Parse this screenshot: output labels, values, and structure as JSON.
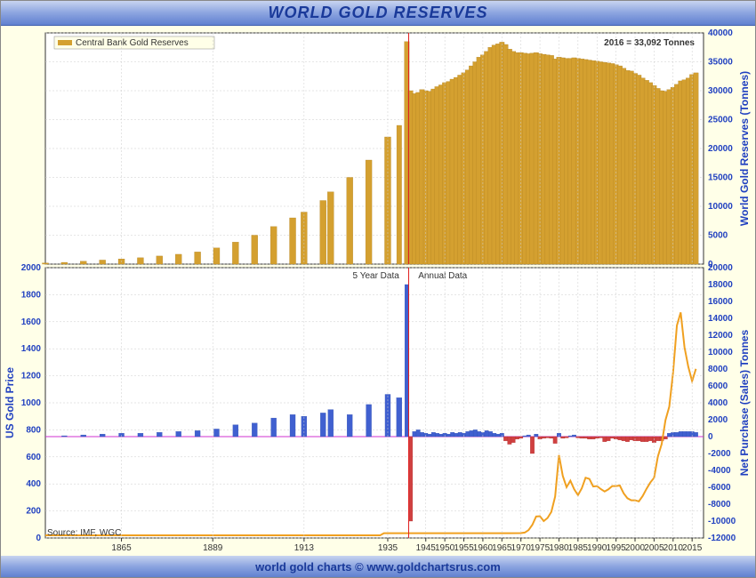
{
  "title": "WORLD GOLD RESERVES",
  "footer": "world gold charts © www.goldchartsrus.com",
  "source": "Source: IMF, WGC",
  "annotation_top": "2016 = 33,092 Tonnes",
  "legend_top": "Central Bank Gold Reserves",
  "label_5yr": "5 Year Data",
  "label_annual": "Annual Data",
  "chart": {
    "background": "#ffffe8",
    "title_color": "#1a3a9a",
    "gradient_top": "#c8d4f0",
    "gradient_mid": "#8ca4e0",
    "gradient_bot": "#6080d0",
    "bar_gold": "#d4a030",
    "bar_blue": "#4060d0",
    "bar_red": "#d04040",
    "line_gold": "#f0a020",
    "zero_line": "#d030d0",
    "marker_red": "#e02020",
    "axis_blue": "#2040c0",
    "grid": "#cccccc"
  },
  "top_panel": {
    "y_title": "World Gold Reserves (Tonnes)",
    "ymin": 0,
    "ymax": 40000,
    "ystep": 5000,
    "bars": [
      {
        "year": 1845,
        "v": 200
      },
      {
        "year": 1850,
        "v": 300
      },
      {
        "year": 1855,
        "v": 500
      },
      {
        "year": 1860,
        "v": 700
      },
      {
        "year": 1865,
        "v": 900
      },
      {
        "year": 1870,
        "v": 1100
      },
      {
        "year": 1875,
        "v": 1400
      },
      {
        "year": 1880,
        "v": 1700
      },
      {
        "year": 1885,
        "v": 2100
      },
      {
        "year": 1890,
        "v": 2800
      },
      {
        "year": 1895,
        "v": 3800
      },
      {
        "year": 1900,
        "v": 5000
      },
      {
        "year": 1905,
        "v": 6500
      },
      {
        "year": 1910,
        "v": 8000
      },
      {
        "year": 1913,
        "v": 9000
      },
      {
        "year": 1918,
        "v": 11000
      },
      {
        "year": 1920,
        "v": 12500
      },
      {
        "year": 1925,
        "v": 15000
      },
      {
        "year": 1930,
        "v": 18000
      },
      {
        "year": 1935,
        "v": 22000
      },
      {
        "year": 1938,
        "v": 24000
      },
      {
        "year": 1940,
        "v": 38500
      },
      {
        "year": 1941,
        "v": 30000
      },
      {
        "year": 1942,
        "v": 29500
      },
      {
        "year": 1943,
        "v": 29700
      },
      {
        "year": 1944,
        "v": 30200
      },
      {
        "year": 1945,
        "v": 30000
      },
      {
        "year": 1946,
        "v": 29900
      },
      {
        "year": 1947,
        "v": 30300
      },
      {
        "year": 1948,
        "v": 30700
      },
      {
        "year": 1949,
        "v": 31000
      },
      {
        "year": 1950,
        "v": 31400
      },
      {
        "year": 1951,
        "v": 31600
      },
      {
        "year": 1952,
        "v": 32000
      },
      {
        "year": 1953,
        "v": 32300
      },
      {
        "year": 1954,
        "v": 32700
      },
      {
        "year": 1955,
        "v": 33100
      },
      {
        "year": 1956,
        "v": 33600
      },
      {
        "year": 1957,
        "v": 34300
      },
      {
        "year": 1958,
        "v": 35000
      },
      {
        "year": 1959,
        "v": 35800
      },
      {
        "year": 1960,
        "v": 36200
      },
      {
        "year": 1961,
        "v": 36800
      },
      {
        "year": 1962,
        "v": 37500
      },
      {
        "year": 1963,
        "v": 37900
      },
      {
        "year": 1964,
        "v": 38100
      },
      {
        "year": 1965,
        "v": 38400
      },
      {
        "year": 1966,
        "v": 38000
      },
      {
        "year": 1967,
        "v": 37200
      },
      {
        "year": 1968,
        "v": 36800
      },
      {
        "year": 1969,
        "v": 36600
      },
      {
        "year": 1970,
        "v": 36600
      },
      {
        "year": 1971,
        "v": 36500
      },
      {
        "year": 1972,
        "v": 36400
      },
      {
        "year": 1973,
        "v": 36500
      },
      {
        "year": 1974,
        "v": 36600
      },
      {
        "year": 1975,
        "v": 36400
      },
      {
        "year": 1976,
        "v": 36300
      },
      {
        "year": 1977,
        "v": 36200
      },
      {
        "year": 1978,
        "v": 36100
      },
      {
        "year": 1979,
        "v": 35500
      },
      {
        "year": 1980,
        "v": 35800
      },
      {
        "year": 1981,
        "v": 35700
      },
      {
        "year": 1982,
        "v": 35600
      },
      {
        "year": 1983,
        "v": 35600
      },
      {
        "year": 1984,
        "v": 35700
      },
      {
        "year": 1985,
        "v": 35600
      },
      {
        "year": 1986,
        "v": 35500
      },
      {
        "year": 1987,
        "v": 35400
      },
      {
        "year": 1988,
        "v": 35300
      },
      {
        "year": 1989,
        "v": 35200
      },
      {
        "year": 1990,
        "v": 35100
      },
      {
        "year": 1991,
        "v": 35000
      },
      {
        "year": 1992,
        "v": 34900
      },
      {
        "year": 1993,
        "v": 34800
      },
      {
        "year": 1994,
        "v": 34700
      },
      {
        "year": 1995,
        "v": 34500
      },
      {
        "year": 1996,
        "v": 34300
      },
      {
        "year": 1997,
        "v": 33900
      },
      {
        "year": 1998,
        "v": 33500
      },
      {
        "year": 1999,
        "v": 33400
      },
      {
        "year": 2000,
        "v": 33000
      },
      {
        "year": 2001,
        "v": 32700
      },
      {
        "year": 2002,
        "v": 32200
      },
      {
        "year": 2003,
        "v": 31800
      },
      {
        "year": 2004,
        "v": 31400
      },
      {
        "year": 2005,
        "v": 30900
      },
      {
        "year": 2006,
        "v": 30400
      },
      {
        "year": 2007,
        "v": 30000
      },
      {
        "year": 2008,
        "v": 29900
      },
      {
        "year": 2009,
        "v": 30200
      },
      {
        "year": 2010,
        "v": 30600
      },
      {
        "year": 2011,
        "v": 31100
      },
      {
        "year": 2012,
        "v": 31700
      },
      {
        "year": 2013,
        "v": 31900
      },
      {
        "year": 2014,
        "v": 32200
      },
      {
        "year": 2015,
        "v": 32800
      },
      {
        "year": 2016,
        "v": 33092
      }
    ]
  },
  "bottom_panel": {
    "y1_title": "US Gold Price",
    "y2_title": "Net Purchase (Sales) Tonnes",
    "y1min": 0,
    "y1max": 2000,
    "y1step": 200,
    "y2min": -12000,
    "y2max": 20000,
    "y2step": 2000,
    "purchase_bars": [
      {
        "year": 1850,
        "v": 100
      },
      {
        "year": 1855,
        "v": 200
      },
      {
        "year": 1860,
        "v": 300
      },
      {
        "year": 1865,
        "v": 400
      },
      {
        "year": 1870,
        "v": 400
      },
      {
        "year": 1875,
        "v": 500
      },
      {
        "year": 1880,
        "v": 600
      },
      {
        "year": 1885,
        "v": 700
      },
      {
        "year": 1890,
        "v": 900
      },
      {
        "year": 1895,
        "v": 1400
      },
      {
        "year": 1900,
        "v": 1600
      },
      {
        "year": 1905,
        "v": 2200
      },
      {
        "year": 1910,
        "v": 2600
      },
      {
        "year": 1913,
        "v": 2400
      },
      {
        "year": 1918,
        "v": 2800
      },
      {
        "year": 1920,
        "v": 3200
      },
      {
        "year": 1925,
        "v": 2600
      },
      {
        "year": 1930,
        "v": 3800
      },
      {
        "year": 1935,
        "v": 5000
      },
      {
        "year": 1938,
        "v": 4600
      },
      {
        "year": 1940,
        "v": 18000
      },
      {
        "year": 1941,
        "v": -10000
      },
      {
        "year": 1942,
        "v": 600
      },
      {
        "year": 1943,
        "v": 800
      },
      {
        "year": 1944,
        "v": 500
      },
      {
        "year": 1945,
        "v": 400
      },
      {
        "year": 1946,
        "v": 300
      },
      {
        "year": 1947,
        "v": 500
      },
      {
        "year": 1948,
        "v": 400
      },
      {
        "year": 1949,
        "v": 300
      },
      {
        "year": 1950,
        "v": 400
      },
      {
        "year": 1951,
        "v": 300
      },
      {
        "year": 1952,
        "v": 500
      },
      {
        "year": 1953,
        "v": 400
      },
      {
        "year": 1954,
        "v": 500
      },
      {
        "year": 1955,
        "v": 400
      },
      {
        "year": 1956,
        "v": 600
      },
      {
        "year": 1957,
        "v": 700
      },
      {
        "year": 1958,
        "v": 800
      },
      {
        "year": 1959,
        "v": 600
      },
      {
        "year": 1960,
        "v": 500
      },
      {
        "year": 1961,
        "v": 700
      },
      {
        "year": 1962,
        "v": 600
      },
      {
        "year": 1963,
        "v": 400
      },
      {
        "year": 1964,
        "v": 300
      },
      {
        "year": 1965,
        "v": 400
      },
      {
        "year": 1966,
        "v": -500
      },
      {
        "year": 1967,
        "v": -900
      },
      {
        "year": 1968,
        "v": -700
      },
      {
        "year": 1969,
        "v": -300
      },
      {
        "year": 1970,
        "v": -200
      },
      {
        "year": 1971,
        "v": 100
      },
      {
        "year": 1972,
        "v": 200
      },
      {
        "year": 1973,
        "v": -2000
      },
      {
        "year": 1974,
        "v": 300
      },
      {
        "year": 1975,
        "v": -300
      },
      {
        "year": 1976,
        "v": -200
      },
      {
        "year": 1977,
        "v": -150
      },
      {
        "year": 1978,
        "v": -200
      },
      {
        "year": 1979,
        "v": -800
      },
      {
        "year": 1980,
        "v": 400
      },
      {
        "year": 1981,
        "v": -200
      },
      {
        "year": 1982,
        "v": -150
      },
      {
        "year": 1983,
        "v": 100
      },
      {
        "year": 1984,
        "v": 200
      },
      {
        "year": 1985,
        "v": -150
      },
      {
        "year": 1986,
        "v": -200
      },
      {
        "year": 1987,
        "v": -200
      },
      {
        "year": 1988,
        "v": -300
      },
      {
        "year": 1989,
        "v": -300
      },
      {
        "year": 1990,
        "v": -200
      },
      {
        "year": 1991,
        "v": -150
      },
      {
        "year": 1992,
        "v": -600
      },
      {
        "year": 1993,
        "v": -500
      },
      {
        "year": 1994,
        "v": -200
      },
      {
        "year": 1995,
        "v": -300
      },
      {
        "year": 1996,
        "v": -400
      },
      {
        "year": 1997,
        "v": -500
      },
      {
        "year": 1998,
        "v": -600
      },
      {
        "year": 1999,
        "v": -400
      },
      {
        "year": 2000,
        "v": -500
      },
      {
        "year": 2001,
        "v": -500
      },
      {
        "year": 2002,
        "v": -600
      },
      {
        "year": 2003,
        "v": -600
      },
      {
        "year": 2004,
        "v": -500
      },
      {
        "year": 2005,
        "v": -700
      },
      {
        "year": 2006,
        "v": -500
      },
      {
        "year": 2007,
        "v": -500
      },
      {
        "year": 2008,
        "v": -300
      },
      {
        "year": 2009,
        "v": 400
      },
      {
        "year": 2010,
        "v": 500
      },
      {
        "year": 2011,
        "v": 500
      },
      {
        "year": 2012,
        "v": 600
      },
      {
        "year": 2013,
        "v": 600
      },
      {
        "year": 2014,
        "v": 600
      },
      {
        "year": 2015,
        "v": 600
      },
      {
        "year": 2016,
        "v": 500
      }
    ],
    "gold_price": [
      {
        "year": 1845,
        "p": 20
      },
      {
        "year": 1900,
        "p": 20
      },
      {
        "year": 1933,
        "p": 20
      },
      {
        "year": 1934,
        "p": 35
      },
      {
        "year": 1967,
        "p": 35
      },
      {
        "year": 1970,
        "p": 36
      },
      {
        "year": 1971,
        "p": 40
      },
      {
        "year": 1972,
        "p": 58
      },
      {
        "year": 1973,
        "p": 97
      },
      {
        "year": 1974,
        "p": 159
      },
      {
        "year": 1975,
        "p": 161
      },
      {
        "year": 1976,
        "p": 125
      },
      {
        "year": 1977,
        "p": 148
      },
      {
        "year": 1978,
        "p": 193
      },
      {
        "year": 1979,
        "p": 307
      },
      {
        "year": 1980,
        "p": 613
      },
      {
        "year": 1981,
        "p": 460
      },
      {
        "year": 1982,
        "p": 376
      },
      {
        "year": 1983,
        "p": 424
      },
      {
        "year": 1984,
        "p": 361
      },
      {
        "year": 1985,
        "p": 317
      },
      {
        "year": 1986,
        "p": 368
      },
      {
        "year": 1987,
        "p": 446
      },
      {
        "year": 1988,
        "p": 437
      },
      {
        "year": 1989,
        "p": 381
      },
      {
        "year": 1990,
        "p": 384
      },
      {
        "year": 1991,
        "p": 362
      },
      {
        "year": 1992,
        "p": 344
      },
      {
        "year": 1993,
        "p": 360
      },
      {
        "year": 1994,
        "p": 384
      },
      {
        "year": 1995,
        "p": 384
      },
      {
        "year": 1996,
        "p": 388
      },
      {
        "year": 1997,
        "p": 331
      },
      {
        "year": 1998,
        "p": 294
      },
      {
        "year": 1999,
        "p": 279
      },
      {
        "year": 2000,
        "p": 279
      },
      {
        "year": 2001,
        "p": 271
      },
      {
        "year": 2002,
        "p": 310
      },
      {
        "year": 2003,
        "p": 363
      },
      {
        "year": 2004,
        "p": 410
      },
      {
        "year": 2005,
        "p": 445
      },
      {
        "year": 2006,
        "p": 603
      },
      {
        "year": 2007,
        "p": 695
      },
      {
        "year": 2008,
        "p": 872
      },
      {
        "year": 2009,
        "p": 972
      },
      {
        "year": 2010,
        "p": 1225
      },
      {
        "year": 2011,
        "p": 1572
      },
      {
        "year": 2012,
        "p": 1669
      },
      {
        "year": 2013,
        "p": 1411
      },
      {
        "year": 2014,
        "p": 1266
      },
      {
        "year": 2015,
        "p": 1160
      },
      {
        "year": 2016,
        "p": 1251
      }
    ]
  },
  "xaxis": {
    "min": 1845,
    "max": 2018,
    "ticks": [
      1865,
      1889,
      1913,
      1935,
      1945,
      1950,
      1955,
      1960,
      1965,
      1970,
      1975,
      1980,
      1985,
      1990,
      1995,
      2000,
      2005,
      2010,
      2015
    ]
  }
}
